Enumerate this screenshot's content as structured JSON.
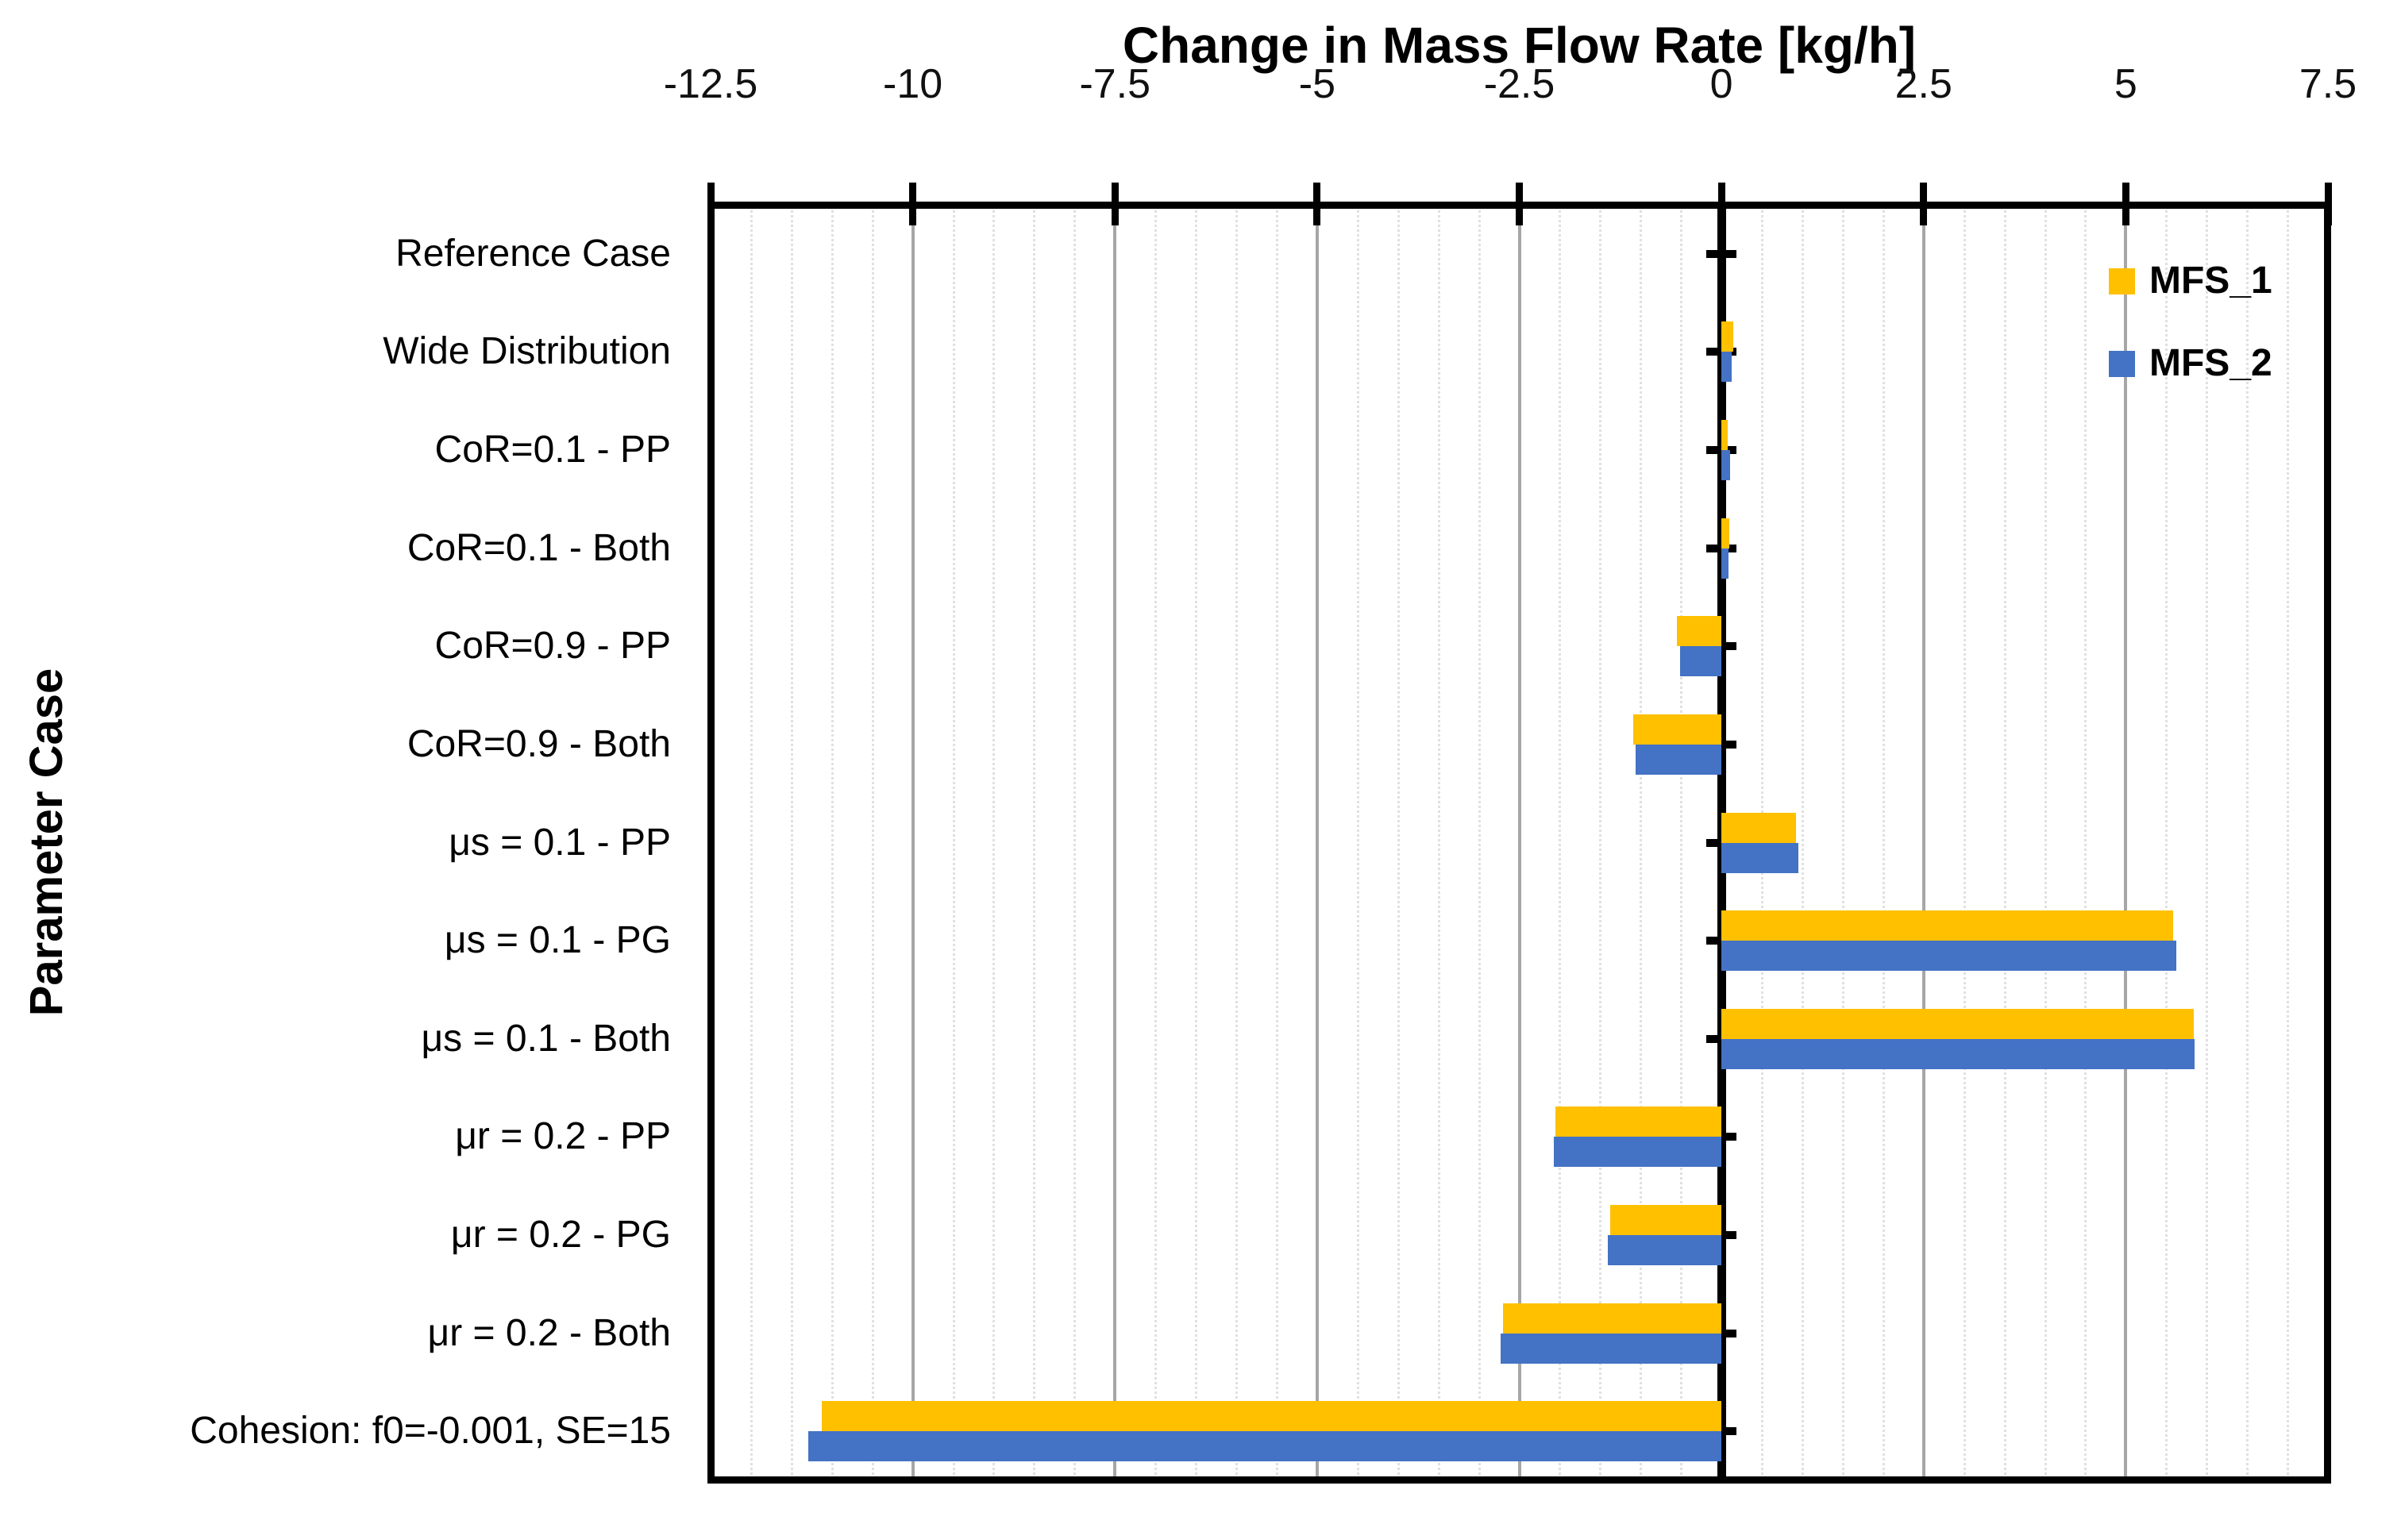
{
  "chart_data": {
    "type": "bar",
    "orientation": "horizontal",
    "title": "Change in Mass Flow Rate [kg/h]",
    "xlabel": "Change in Mass Flow Rate [kg/h]",
    "ylabel": "Parameter Case",
    "xlim": [
      -12.5,
      7.5
    ],
    "x_ticks": [
      -12.5,
      -10,
      -7.5,
      -5,
      -2.5,
      0,
      2.5,
      5,
      7.5
    ],
    "x_tick_labels": [
      "-12.5",
      "-10",
      "-7.5",
      "-5",
      "-2.5",
      "0",
      "2.5",
      "5",
      "7.5"
    ],
    "minor_grid_interval": 0.5,
    "grid": {
      "major": "solid-gray",
      "minor": "dotted-light",
      "zero_axis": "solid-black"
    },
    "legend_position": "top-right-inside",
    "categories": [
      "Reference Case",
      "Wide Distribution",
      "CoR=0.1 - PP",
      "CoR=0.1 - Both",
      "CoR=0.9 - PP",
      "CoR=0.9 - Both",
      "μs = 0.1 - PP",
      "μs = 0.1 - PG",
      "μs = 0.1 - Both",
      "μr = 0.2 - PP",
      "μr = 0.2 - PG",
      "μr = 0.2 - Both",
      "Cohesion: f0=-0.001, SE=15"
    ],
    "series": [
      {
        "name": "MFS_1",
        "color": "#FFC000",
        "values": [
          0,
          0.15,
          0.08,
          0.1,
          -0.55,
          -1.09,
          0.92,
          5.59,
          5.84,
          -2.05,
          -1.38,
          -2.7,
          -11.13
        ]
      },
      {
        "name": "MFS_2",
        "color": "#4472C4",
        "values": [
          0,
          0.13,
          0.11,
          0.09,
          -0.51,
          -1.06,
          0.95,
          5.62,
          5.85,
          -2.07,
          -1.41,
          -2.73,
          -11.29
        ]
      }
    ]
  },
  "colors": {
    "background": "#ffffff",
    "major_grid": "#a6a6a6",
    "minor_grid": "#e0e0e0",
    "axis_and_frame": "#000000",
    "text": "#000000"
  }
}
